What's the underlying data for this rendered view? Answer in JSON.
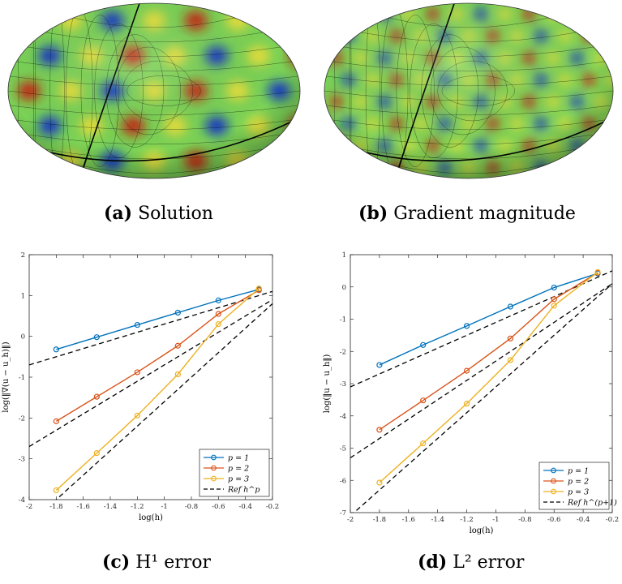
{
  "captions": {
    "a": {
      "tag": "(a)",
      "text": "Solution"
    },
    "b": {
      "tag": "(b)",
      "text": "Gradient magnitude"
    },
    "c": {
      "tag": "(c)",
      "text": "H¹ error"
    },
    "d": {
      "tag": "(d)",
      "text": "L² error"
    }
  },
  "colors": {
    "p1": "#0072BD",
    "p2": "#D95319",
    "p3": "#EDB120",
    "ref": "#000000",
    "red": "#c81e10",
    "blue": "#1030c8",
    "green": "#7ad256",
    "yellow": "#f0e03a"
  },
  "chart_data": [
    {
      "type": "line",
      "panel": "c",
      "xlabel": "log(h)",
      "ylabel": "log(‖∇(u − u_h)‖)",
      "xlim": [
        -2,
        -0.2
      ],
      "ylim": [
        -4,
        2
      ],
      "xticks": [
        "-2",
        "-1.8",
        "-1.6",
        "-1.4",
        "-1.2",
        "-1",
        "-0.8",
        "-0.6",
        "-0.4",
        "-0.2"
      ],
      "yticks": [
        "-4",
        "-3",
        "-2",
        "-1",
        "0",
        "1",
        "2"
      ],
      "legend_position": "bottom-right",
      "series": [
        {
          "name": "p = 1",
          "x": [
            -1.8,
            -1.5,
            -1.2,
            -0.9,
            -0.6,
            -0.3
          ],
          "y": [
            -0.32,
            -0.02,
            0.28,
            0.58,
            0.88,
            1.15
          ]
        },
        {
          "name": "p = 2",
          "x": [
            -1.8,
            -1.5,
            -1.2,
            -0.9,
            -0.6,
            -0.3
          ],
          "y": [
            -2.08,
            -1.48,
            -0.88,
            -0.23,
            0.55,
            1.13
          ]
        },
        {
          "name": "p = 3",
          "x": [
            -1.8,
            -1.5,
            -1.2,
            -0.9,
            -0.6,
            -0.3
          ],
          "y": [
            -3.77,
            -2.86,
            -1.94,
            -0.93,
            0.3,
            1.17
          ]
        }
      ],
      "reference": {
        "name": "Ref h^p",
        "lines": [
          {
            "slope": 1,
            "intercept": 1.3
          },
          {
            "slope": 2,
            "intercept": 1.3
          },
          {
            "slope": 3,
            "intercept": 1.4
          }
        ]
      }
    },
    {
      "type": "line",
      "panel": "d",
      "xlabel": "log(h)",
      "ylabel": "log(‖u − u_h‖)",
      "xlim": [
        -2,
        -0.2
      ],
      "ylim": [
        -7,
        1
      ],
      "xticks": [
        "-2",
        "-1.8",
        "-1.6",
        "-1.4",
        "-1.2",
        "-1",
        "-0.8",
        "-0.6",
        "-0.4",
        "-0.2"
      ],
      "yticks": [
        "-7",
        "-6",
        "-5",
        "-4",
        "-3",
        "-2",
        "-1",
        "0",
        "1"
      ],
      "legend_position": "bottom-right",
      "series": [
        {
          "name": "p = 1",
          "x": [
            -1.8,
            -1.5,
            -1.2,
            -0.9,
            -0.6,
            -0.3
          ],
          "y": [
            -2.42,
            -1.8,
            -1.21,
            -0.61,
            -0.02,
            0.42
          ]
        },
        {
          "name": "p = 2",
          "x": [
            -1.8,
            -1.5,
            -1.2,
            -0.9,
            -0.6,
            -0.3
          ],
          "y": [
            -4.43,
            -3.52,
            -2.6,
            -1.6,
            -0.38,
            0.44
          ]
        },
        {
          "name": "p = 3",
          "x": [
            -1.8,
            -1.5,
            -1.2,
            -0.9,
            -0.6,
            -0.3
          ],
          "y": [
            -6.07,
            -4.85,
            -3.62,
            -2.27,
            -0.58,
            0.46
          ]
        }
      ],
      "reference": {
        "name": "Ref h^(p+1)",
        "lines": [
          {
            "slope": 2,
            "intercept": 0.9
          },
          {
            "slope": 3,
            "intercept": 0.7
          },
          {
            "slope": 4,
            "intercept": 0.9
          }
        ]
      }
    }
  ]
}
